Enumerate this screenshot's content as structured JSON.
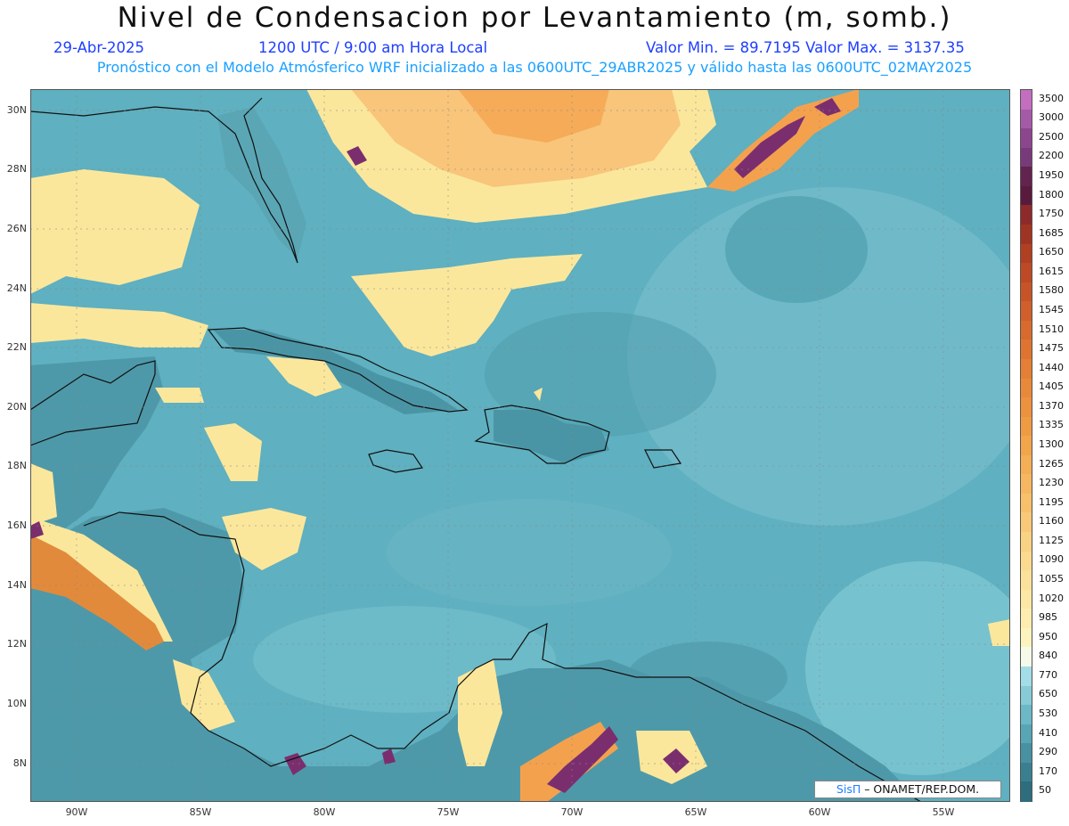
{
  "header": {
    "title": "Nivel de Condensacion por Levantamiento (m, somb.)",
    "date": "29-Abr-2025",
    "time": "1200 UTC / 9:00 am Hora Local",
    "minmax": "Valor Min. = 89.7195  Valor Max. = 3137.35",
    "subtitle": "Pronóstico con el Modelo Atmósferico WRF inicializado a las 0600UTC_29ABR2025 y válido hasta las  0600UTC_02MAY2025"
  },
  "map": {
    "lat_labels": [
      "30N",
      "28N",
      "26N",
      "24N",
      "22N",
      "20N",
      "18N",
      "16N",
      "14N",
      "12N",
      "10N",
      "8N"
    ],
    "lon_labels": [
      "90W",
      "85W",
      "80W",
      "75W",
      "70W",
      "65W",
      "60W",
      "55W"
    ],
    "colors": {
      "ocean": "#5fb0c0",
      "land_low": "#4c9aaa",
      "yellow": "#fbe79c",
      "orange": "#f4a14e",
      "dark_orange": "#c9552a",
      "purple": "#7b2e6e"
    }
  },
  "legend": {
    "levels": [
      "3500",
      "3000",
      "2500",
      "2200",
      "1950",
      "1800",
      "1750",
      "1685",
      "1650",
      "1615",
      "1580",
      "1545",
      "1510",
      "1475",
      "1440",
      "1405",
      "1370",
      "1335",
      "1300",
      "1265",
      "1230",
      "1195",
      "1160",
      "1125",
      "1090",
      "1055",
      "1020",
      "985",
      "950",
      "840",
      "770",
      "650",
      "530",
      "410",
      "290",
      "170",
      "50"
    ],
    "colors": [
      "#c46ec0",
      "#a55aa8",
      "#8c468e",
      "#793a7a",
      "#62234f",
      "#5a1a3d",
      "#8e2a2a",
      "#a03422",
      "#b13f22",
      "#bd4a24",
      "#c75427",
      "#d05f2b",
      "#d86a2e",
      "#df7431",
      "#e47f35",
      "#e8893a",
      "#ec923f",
      "#ef9b44",
      "#f2a54b",
      "#f4ae55",
      "#f6b760",
      "#f8c06b",
      "#f9c977",
      "#fad283",
      "#fbda8f",
      "#fce19a",
      "#fde7a4",
      "#fdeeb0",
      "#fdf3bf",
      "#f5fbe8",
      "#a3dde6",
      "#86cbd6",
      "#6cb8c6",
      "#58a5b5",
      "#4891a2",
      "#3a7f90",
      "#2e6d7e"
    ]
  },
  "credit": {
    "brand": "SisΠ",
    "text": " – ONAMET/REP.DOM."
  }
}
